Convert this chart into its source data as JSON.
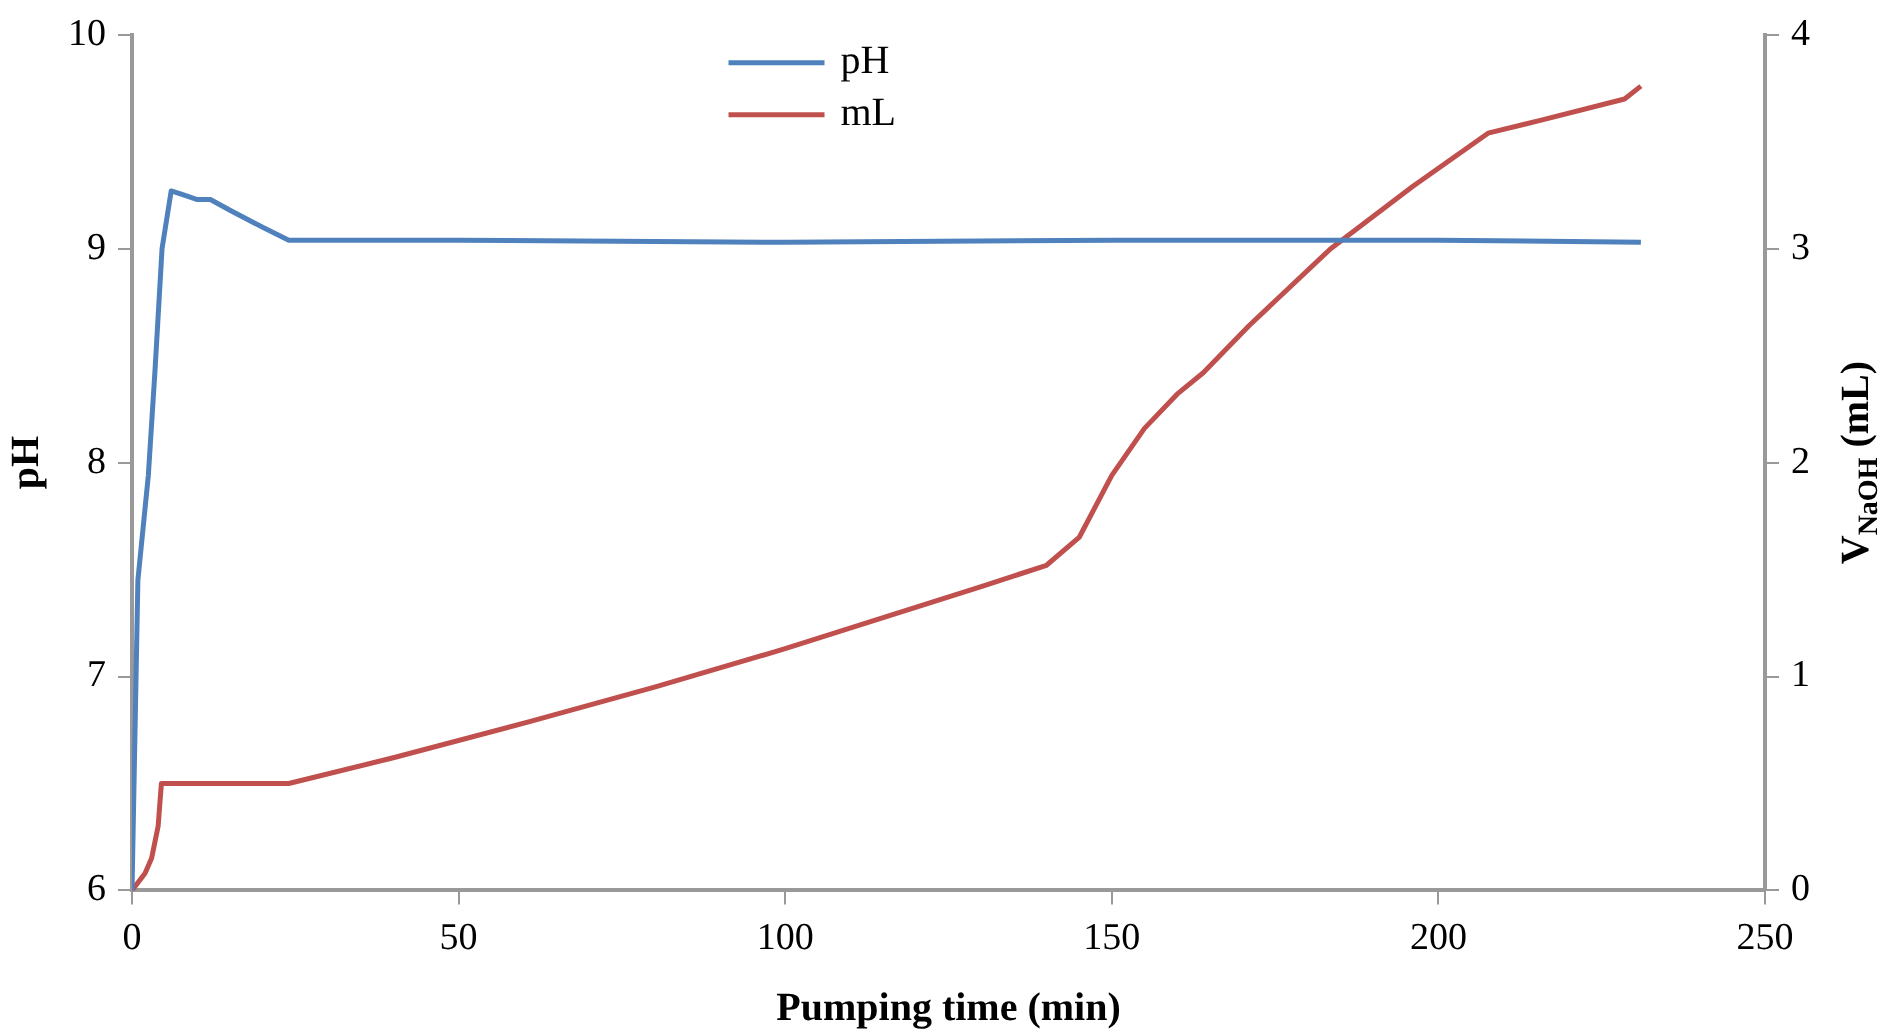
{
  "chart_data": {
    "type": "line",
    "xlabel": "Pumping time (min)",
    "ylabel": "pH",
    "y2label": "V$_{NaOH}$ (mL)",
    "xlim": [
      0,
      250
    ],
    "xticks": [
      0,
      50,
      100,
      150,
      200,
      250
    ],
    "ylim": [
      6,
      10
    ],
    "yticks": [
      6,
      7,
      8,
      9,
      10
    ],
    "y2lim": [
      0,
      4
    ],
    "y2ticks": [
      0,
      1,
      2,
      3,
      4
    ],
    "grid": false,
    "legend": "top",
    "marker": "none",
    "line_style": "solid",
    "series": [
      {
        "name": "pH",
        "color": "#4f81bd",
        "x": [
          0,
          0.9,
          2.5,
          3.5,
          4.6,
          6,
          8,
          10,
          12,
          15,
          20,
          24,
          50,
          100,
          150,
          200,
          231
        ],
        "values": [
          6,
          7.45,
          7.94,
          8.42,
          9.0,
          9.27,
          9.25,
          9.23,
          9.23,
          9.18,
          9.1,
          9.04,
          9.04,
          9.03,
          9.04,
          9.04,
          9.03
        ]
      },
      {
        "name": "mL",
        "color": "#c0504d",
        "axis": "y2",
        "x": [
          0,
          2,
          3,
          4,
          4.5,
          24,
          40,
          61,
          80,
          100,
          130,
          140,
          145,
          150,
          155,
          160,
          164,
          171,
          183.5,
          196,
          207.6,
          215.6,
          228.5,
          231
        ],
        "values": [
          0,
          0.08,
          0.15,
          0.3,
          0.5,
          0.5,
          0.62,
          0.79,
          0.95,
          1.13,
          1.42,
          1.52,
          1.65,
          1.94,
          2.16,
          2.32,
          2.42,
          2.64,
          3.0,
          3.29,
          3.54,
          3.6,
          3.7,
          3.76
        ]
      }
    ]
  }
}
